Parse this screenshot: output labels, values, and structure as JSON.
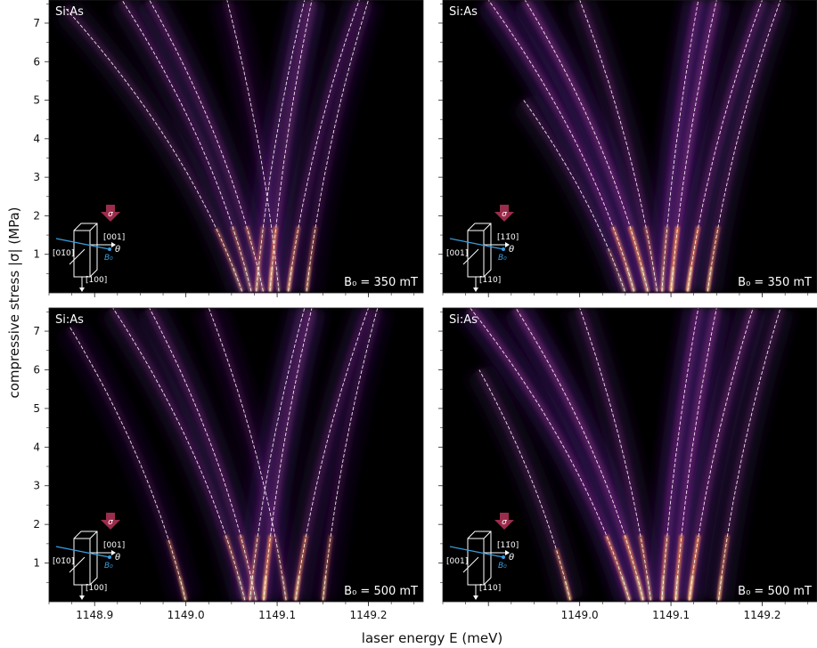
{
  "figure": {
    "xlabel": "laser energy E (meV)",
    "ylabel": "compressive stress |σ| (MPa)"
  },
  "inset_labels": {
    "stress_symbol": "σ",
    "angle_symbol": "θ",
    "field_symbol": "B₀"
  },
  "colors": {
    "background": "#000000",
    "trace": "#ffffff",
    "glow_low": "#3a1560",
    "glow_mid": "#8e2f8a",
    "glow_high": "#f0884e",
    "glow_peak": "#fde0a0",
    "arrow": "#9a2c4c",
    "field_arrow": "#3a9ee0"
  },
  "chart_data": [
    {
      "type": "heatmap",
      "panel": "top-left",
      "label": "Si:As",
      "field_label": "B₀ = 350 mT",
      "sample_axes": {
        "top": "",
        "right": "[001]",
        "left": "[01̄0]",
        "bottom": "[100]"
      },
      "xlim": [
        1148.85,
        1149.26
      ],
      "ylim": [
        0,
        7.6
      ],
      "x_ticks": [
        1148.9,
        1149.0,
        1149.1,
        1149.2
      ],
      "x_tick_labels": [],
      "y_ticks": [
        1,
        2,
        3,
        4,
        5,
        6,
        7
      ],
      "y_tick_labels": [
        "1",
        "2",
        "3",
        "4",
        "5",
        "6",
        "7"
      ],
      "intensity_scale": 0.85,
      "lines": [
        {
          "e0": 1149.062,
          "e1": 1148.86,
          "y_end": 7.4,
          "w": 0.6
        },
        {
          "e0": 1149.072,
          "e1": 1148.93,
          "y_end": 7.6,
          "w": 0.7
        },
        {
          "e0": 1149.085,
          "e1": 1148.96,
          "y_end": 7.6,
          "w": 0.8
        },
        {
          "e0": 1149.102,
          "e1": 1149.045,
          "y_end": 7.6,
          "w": 0.55
        },
        {
          "e0": 1149.077,
          "e1": 1149.13,
          "y_end": 7.6,
          "w": 0.75
        },
        {
          "e0": 1149.092,
          "e1": 1149.138,
          "y_end": 7.6,
          "w": 0.9
        },
        {
          "e0": 1149.112,
          "e1": 1149.19,
          "y_end": 7.6,
          "w": 0.7
        },
        {
          "e0": 1149.132,
          "e1": 1149.2,
          "y_end": 7.6,
          "w": 0.5
        }
      ]
    },
    {
      "type": "heatmap",
      "panel": "top-right",
      "label": "Si:As",
      "field_label": "B₀ = 350 mT",
      "sample_axes": {
        "top": "",
        "right": "[11̄0]",
        "left": "[001]",
        "bottom": "[110]"
      },
      "xlim": [
        1148.85,
        1149.26
      ],
      "ylim": [
        0,
        7.6
      ],
      "x_ticks": [
        1148.9,
        1149.0,
        1149.1,
        1149.2
      ],
      "x_tick_labels": [],
      "y_ticks": [
        1,
        2,
        3,
        4,
        5,
        6,
        7
      ],
      "y_tick_labels": [],
      "intensity_scale": 1.0,
      "lines": [
        {
          "e0": 1149.05,
          "e1": 1148.85,
          "y_end": 5.0,
          "w": 0.5
        },
        {
          "e0": 1149.06,
          "e1": 1148.9,
          "y_end": 7.6,
          "w": 0.9
        },
        {
          "e0": 1149.075,
          "e1": 1148.94,
          "y_end": 7.6,
          "w": 1.0
        },
        {
          "e0": 1149.085,
          "e1": 1149.0,
          "y_end": 7.6,
          "w": 0.6
        },
        {
          "e0": 1149.09,
          "e1": 1149.13,
          "y_end": 7.6,
          "w": 1.0
        },
        {
          "e0": 1149.1,
          "e1": 1149.15,
          "y_end": 7.6,
          "w": 1.0
        },
        {
          "e0": 1149.118,
          "e1": 1149.2,
          "y_end": 7.6,
          "w": 0.8
        },
        {
          "e0": 1149.14,
          "e1": 1149.22,
          "y_end": 7.6,
          "w": 0.55
        }
      ]
    },
    {
      "type": "heatmap",
      "panel": "bottom-left",
      "label": "Si:As",
      "field_label": "B₀ = 500 mT",
      "sample_axes": {
        "top": "",
        "right": "[001]",
        "left": "[01̄0]",
        "bottom": "[100]"
      },
      "xlim": [
        1148.85,
        1149.26
      ],
      "ylim": [
        0,
        7.6
      ],
      "x_ticks": [
        1148.9,
        1149.0,
        1149.1,
        1149.2
      ],
      "x_tick_labels": [
        "1148.9",
        "1149.0",
        "1149.1",
        "1149.2"
      ],
      "y_ticks": [
        1,
        2,
        3,
        4,
        5,
        6,
        7
      ],
      "y_tick_labels": [
        "1",
        "2",
        "3",
        "4",
        "5",
        "6",
        "7"
      ],
      "intensity_scale": 0.85,
      "lines": [
        {
          "e0": 1149.0,
          "e1": 1148.86,
          "y_end": 7.1,
          "w": 0.5
        },
        {
          "e0": 1149.065,
          "e1": 1148.92,
          "y_end": 7.6,
          "w": 0.7
        },
        {
          "e0": 1149.077,
          "e1": 1148.96,
          "y_end": 7.6,
          "w": 0.8
        },
        {
          "e0": 1149.11,
          "e1": 1149.025,
          "y_end": 7.6,
          "w": 0.55
        },
        {
          "e0": 1149.07,
          "e1": 1149.13,
          "y_end": 7.6,
          "w": 0.75
        },
        {
          "e0": 1149.085,
          "e1": 1149.138,
          "y_end": 7.6,
          "w": 0.9
        },
        {
          "e0": 1149.12,
          "e1": 1149.2,
          "y_end": 7.6,
          "w": 0.7
        },
        {
          "e0": 1149.15,
          "e1": 1149.21,
          "y_end": 7.6,
          "w": 0.5
        }
      ]
    },
    {
      "type": "heatmap",
      "panel": "bottom-right",
      "label": "Si:As",
      "field_label": "B₀ = 500 mT",
      "sample_axes": {
        "top": "",
        "right": "[11̄0]",
        "left": "[001]",
        "bottom": "[110]"
      },
      "xlim": [
        1148.85,
        1149.26
      ],
      "ylim": [
        0,
        7.6
      ],
      "x_ticks": [
        1148.9,
        1149.0,
        1149.1,
        1149.2
      ],
      "x_tick_labels": [
        "1149.0",
        "1149.1",
        "1149.2"
      ],
      "y_ticks": [
        1,
        2,
        3,
        4,
        5,
        6,
        7
      ],
      "y_tick_labels": [],
      "intensity_scale": 1.0,
      "lines": [
        {
          "e0": 1148.99,
          "e1": 1148.85,
          "y_end": 6.0,
          "w": 0.5
        },
        {
          "e0": 1149.055,
          "e1": 1148.88,
          "y_end": 7.6,
          "w": 0.9
        },
        {
          "e0": 1149.07,
          "e1": 1148.93,
          "y_end": 7.6,
          "w": 1.0
        },
        {
          "e0": 1149.078,
          "e1": 1149.0,
          "y_end": 7.6,
          "w": 0.6
        },
        {
          "e0": 1149.09,
          "e1": 1149.13,
          "y_end": 7.6,
          "w": 1.0
        },
        {
          "e0": 1149.105,
          "e1": 1149.15,
          "y_end": 7.6,
          "w": 1.0
        },
        {
          "e0": 1149.12,
          "e1": 1149.19,
          "y_end": 7.6,
          "w": 0.8
        },
        {
          "e0": 1149.152,
          "e1": 1149.22,
          "y_end": 7.6,
          "w": 0.55
        }
      ]
    }
  ]
}
